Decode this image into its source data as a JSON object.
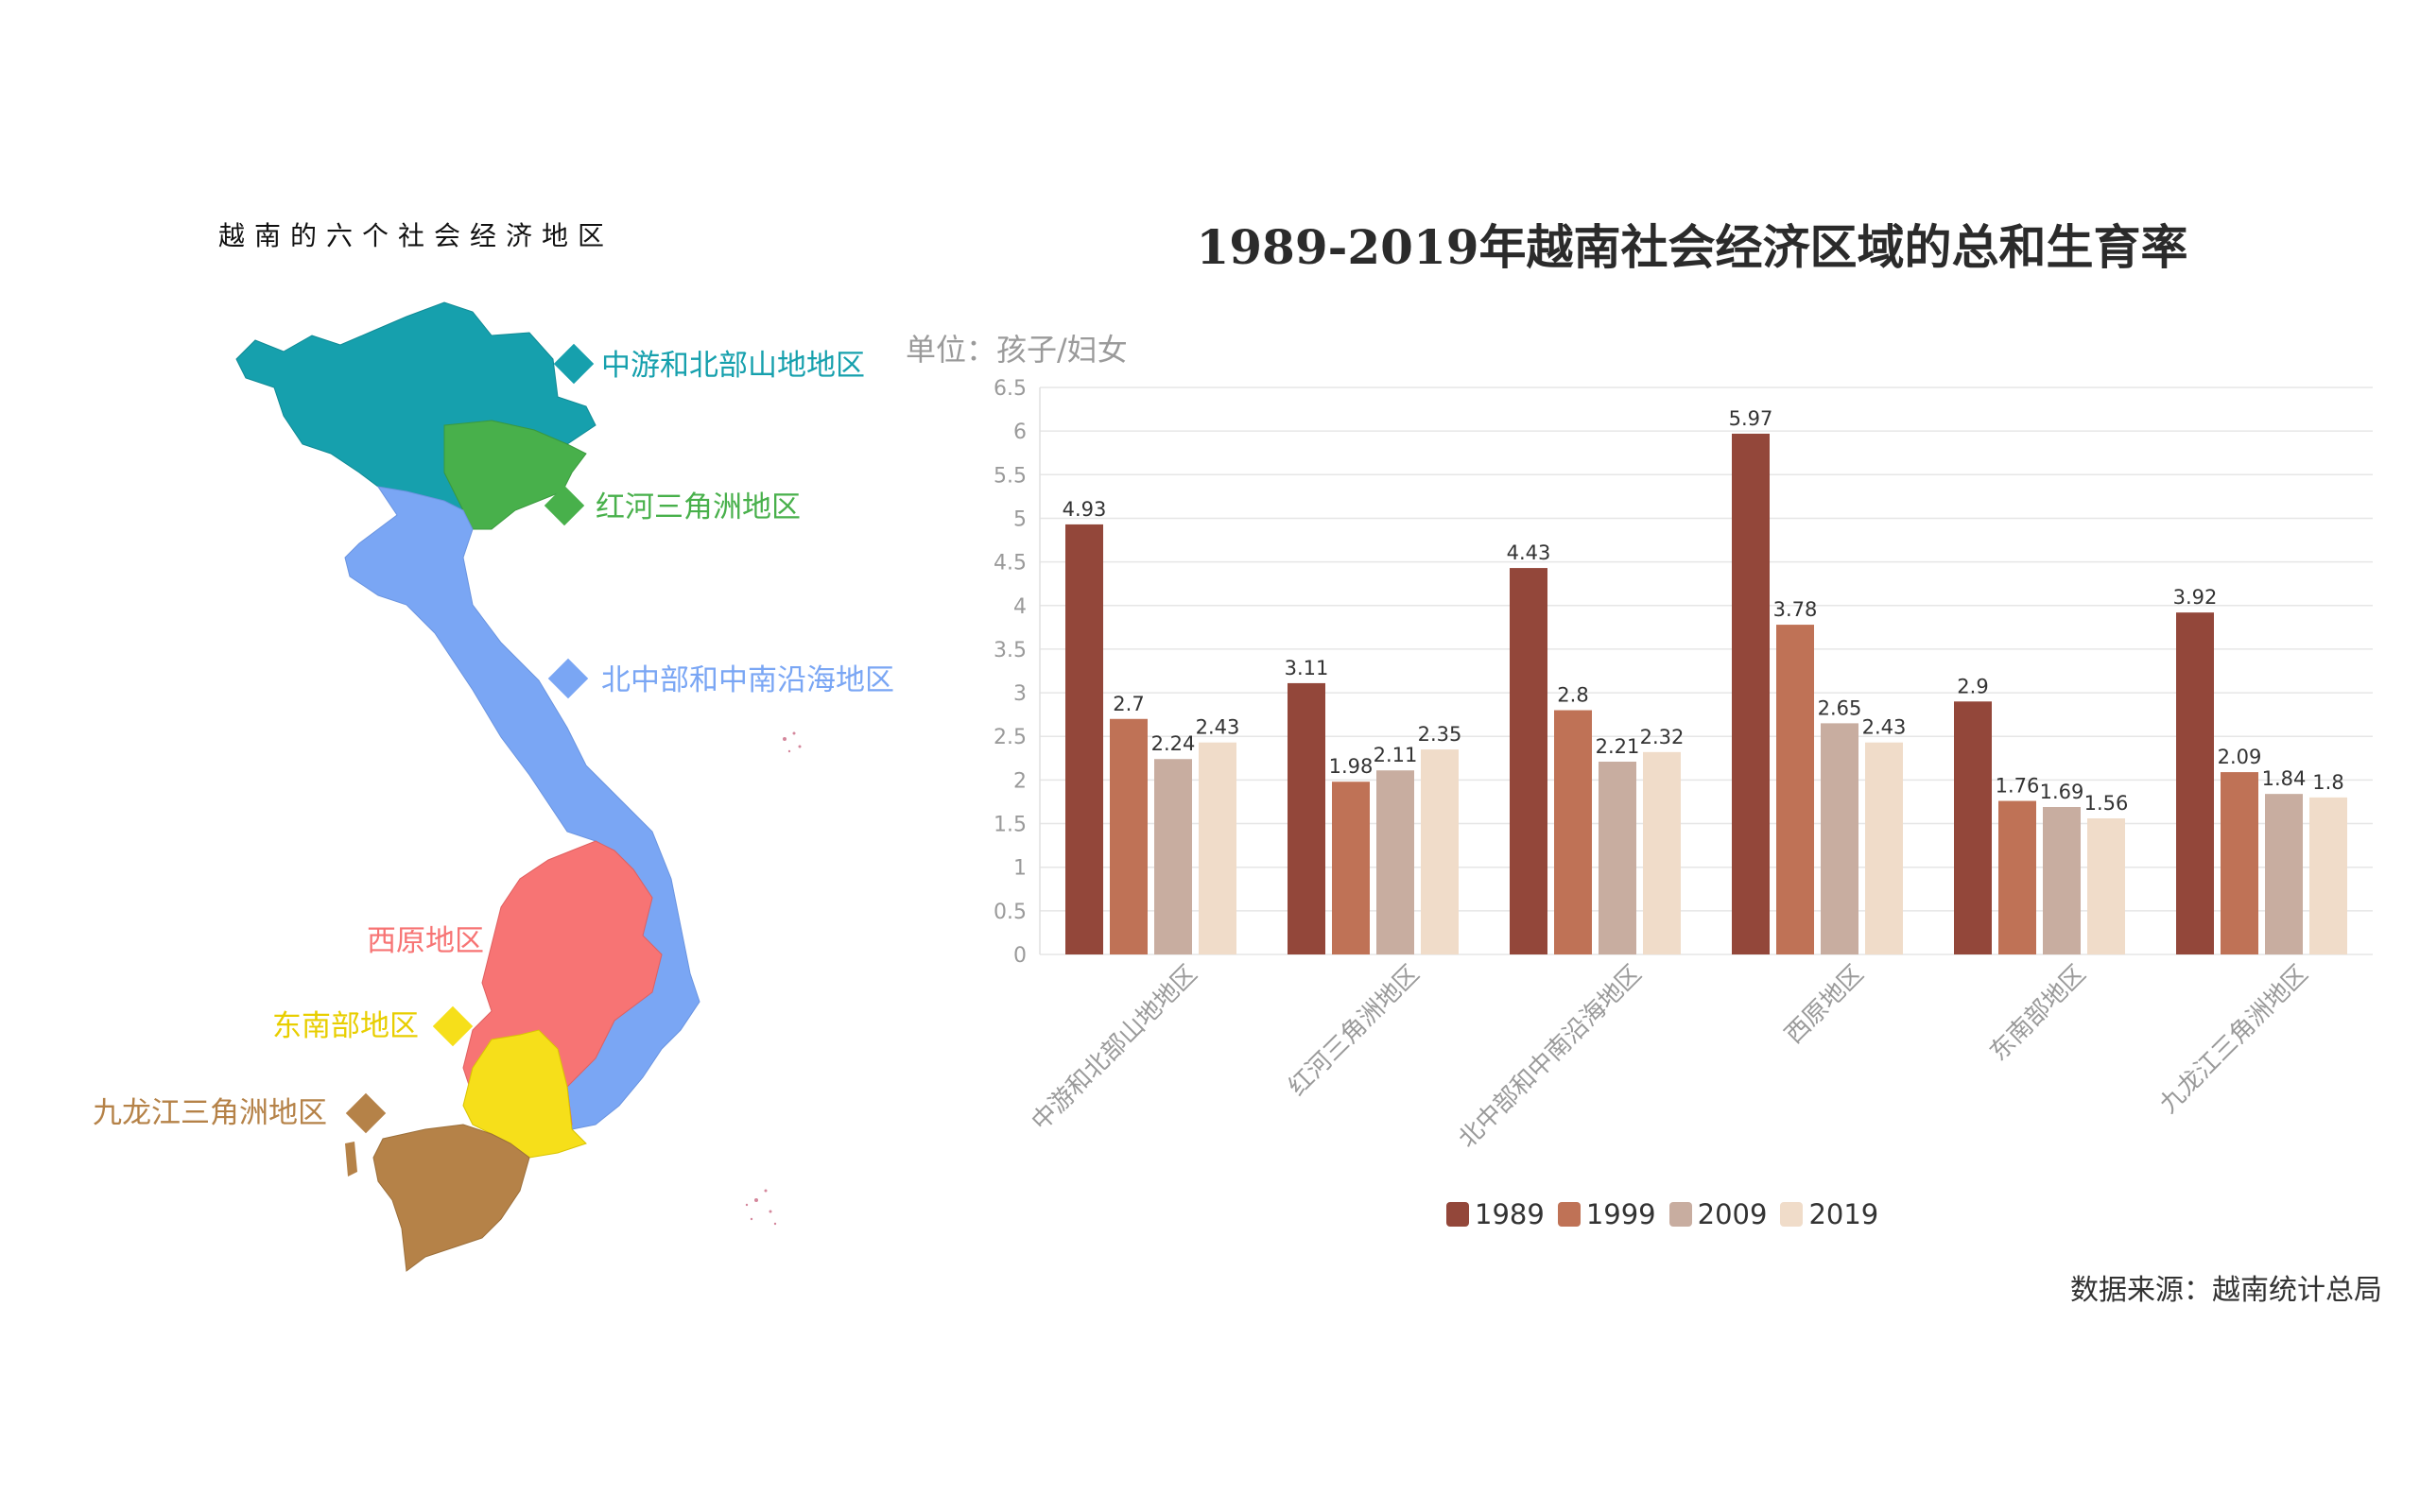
{
  "map": {
    "title": "越南的六个社会经济地区",
    "regions": [
      {
        "label": "中游和北部山地地区",
        "color": "#16a0ad"
      },
      {
        "label": "红河三角洲地区",
        "color": "#48b04b"
      },
      {
        "label": "北中部和中南沿海地区",
        "color": "#7aa6f4"
      },
      {
        "label": "西原地区",
        "color": "#f77474"
      },
      {
        "label": "东南部地区",
        "color": "#f6df1a"
      },
      {
        "label": "九龙江三角洲地区",
        "color": "#b58248"
      }
    ]
  },
  "chart": {
    "title": "1989-2019年越南社会经济区域的总和生育率",
    "unit": "单位：孩子/妇女",
    "source": "数据来源：越南统计总局"
  },
  "chart_data": {
    "type": "bar",
    "categories": [
      "中游和北部山地地区",
      "红河三角洲地区",
      "北中部和中南沿海地区",
      "西原地区",
      "东南部地区",
      "九龙江三角洲地区"
    ],
    "series": [
      {
        "name": "1989",
        "color": "#93473a",
        "values": [
          4.93,
          3.11,
          4.43,
          5.97,
          2.9,
          3.92
        ]
      },
      {
        "name": "1999",
        "color": "#bf7256",
        "values": [
          2.7,
          1.98,
          2.8,
          3.78,
          1.76,
          2.09
        ]
      },
      {
        "name": "2009",
        "color": "#c8ada0",
        "values": [
          2.24,
          2.11,
          2.21,
          2.65,
          1.69,
          1.84
        ]
      },
      {
        "name": "2019",
        "color": "#f0dcc9",
        "values": [
          2.43,
          2.35,
          2.32,
          2.43,
          1.56,
          1.8
        ]
      }
    ],
    "yticks": [
      "0",
      "0.5",
      "1",
      "1.5",
      "2",
      "2.5",
      "3",
      "3.5",
      "4",
      "4.5",
      "5",
      "5.5",
      "6",
      "6.5"
    ],
    "ylim": [
      0,
      6.5
    ],
    "grid": true,
    "legend_position": "bottom"
  }
}
